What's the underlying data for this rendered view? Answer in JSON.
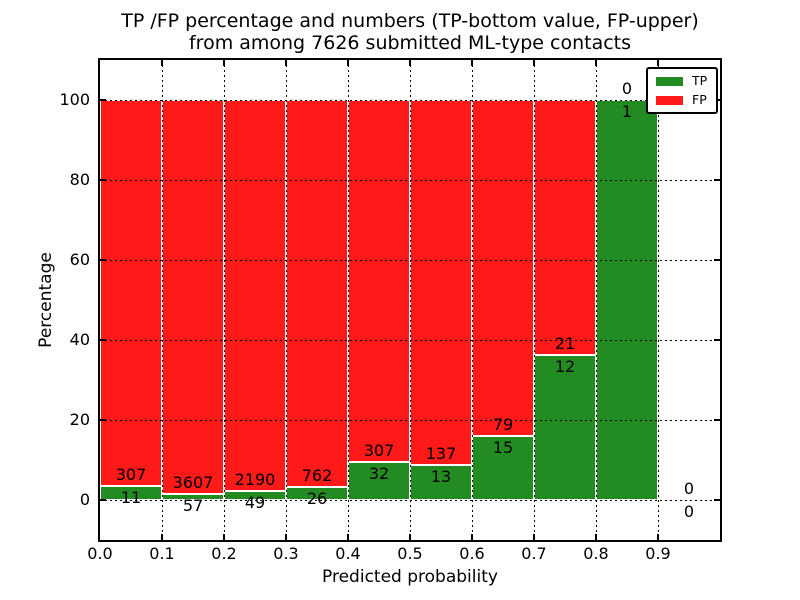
{
  "chart_data": {
    "type": "bar",
    "stacked": true,
    "title_line1": "TP /FP percentage and numbers (TP-bottom value, FP-upper)",
    "title_line2": "from among 7626 submitted ML-type contacts",
    "total_contacts": "7626",
    "xlabel": "Predicted probability",
    "ylabel": "Percentage",
    "xlim": [
      0.0,
      1.0
    ],
    "ylim": [
      -10,
      110
    ],
    "grid": "dotted, drawn over bars",
    "legend_position": "upper right",
    "legend": [
      {
        "label": "TP",
        "color": "#228B22"
      },
      {
        "label": "FP",
        "color": "#ff1a1a"
      }
    ],
    "xticks": [
      0.0,
      0.1,
      0.2,
      0.3,
      0.4,
      0.5,
      0.6,
      0.7,
      0.8,
      0.9
    ],
    "xtick_labels": [
      "0.0",
      "0.1",
      "0.2",
      "0.3",
      "0.4",
      "0.5",
      "0.6",
      "0.7",
      "0.8",
      "0.9"
    ],
    "yticks": [
      0,
      20,
      40,
      60,
      80,
      100
    ],
    "ytick_labels": [
      "0",
      "20",
      "40",
      "60",
      "80",
      "100"
    ],
    "annotation_note": "TP count below green-bar top line, FP count above it",
    "bins": [
      {
        "x0": 0.0,
        "x1": 0.1,
        "range": "0.0-0.1",
        "tp": 11,
        "fp": 307,
        "tp_pct": 3.46
      },
      {
        "x0": 0.1,
        "x1": 0.2,
        "range": "0.1-0.2",
        "tp": 57,
        "fp": 3607,
        "tp_pct": 1.56
      },
      {
        "x0": 0.2,
        "x1": 0.3,
        "range": "0.2-0.3",
        "tp": 49,
        "fp": 2190,
        "tp_pct": 2.19
      },
      {
        "x0": 0.3,
        "x1": 0.4,
        "range": "0.3-0.4",
        "tp": 26,
        "fp": 762,
        "tp_pct": 3.3
      },
      {
        "x0": 0.4,
        "x1": 0.5,
        "range": "0.4-0.5",
        "tp": 32,
        "fp": 307,
        "tp_pct": 9.44
      },
      {
        "x0": 0.5,
        "x1": 0.6,
        "range": "0.5-0.6",
        "tp": 13,
        "fp": 137,
        "tp_pct": 8.67
      },
      {
        "x0": 0.6,
        "x1": 0.7,
        "range": "0.6-0.7",
        "tp": 15,
        "fp": 79,
        "tp_pct": 15.96
      },
      {
        "x0": 0.7,
        "x1": 0.8,
        "range": "0.7-0.8",
        "tp": 12,
        "fp": 21,
        "tp_pct": 36.36
      },
      {
        "x0": 0.8,
        "x1": 0.9,
        "range": "0.8-0.9",
        "tp": 1,
        "fp": 0,
        "tp_pct": 100.0
      },
      {
        "x0": 0.9,
        "x1": 1.0,
        "range": "0.9-1.0",
        "tp": 0,
        "fp": 0,
        "tp_pct": 0.0
      }
    ],
    "colors": {
      "tp": "#228B22",
      "fp": "#ff1a1a",
      "grid": "#000000",
      "bar_edge": "#ffffff"
    }
  }
}
